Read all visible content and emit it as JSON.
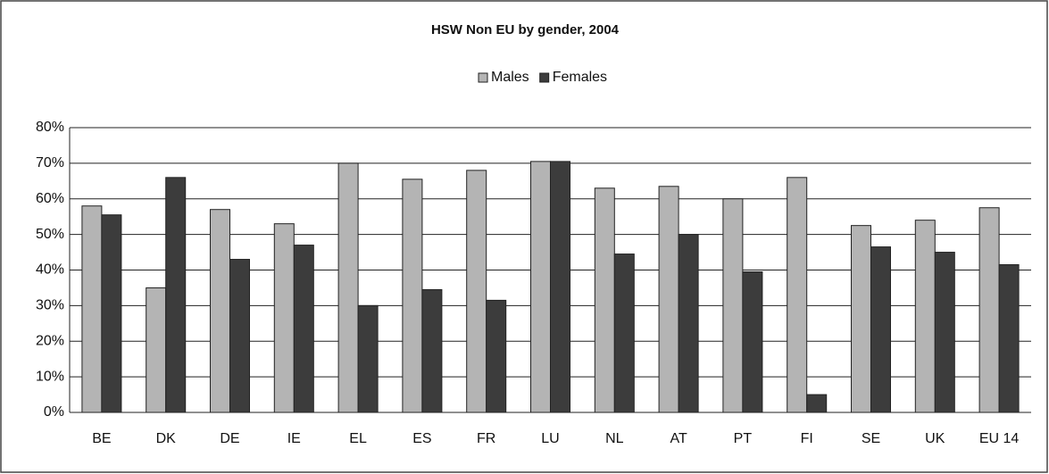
{
  "chart_data": {
    "type": "bar",
    "title": "HSW Non EU by gender, 2004",
    "categories": [
      "BE",
      "DK",
      "DE",
      "IE",
      "EL",
      "ES",
      "FR",
      "LU",
      "NL",
      "AT",
      "PT",
      "FI",
      "SE",
      "UK",
      "EU 14"
    ],
    "series": [
      {
        "name": "Males",
        "color": "#b4b4b4",
        "values": [
          58,
          35,
          57,
          53,
          70,
          65.5,
          68,
          70.5,
          63,
          63.5,
          60,
          66,
          52.5,
          54,
          57.5
        ]
      },
      {
        "name": "Females",
        "color": "#3c3c3c",
        "values": [
          55.5,
          66,
          43,
          47,
          30,
          34.5,
          31.5,
          70.5,
          44.5,
          50,
          39.5,
          5,
          46.5,
          45,
          41.5
        ]
      }
    ],
    "ylim": [
      0,
      80
    ],
    "yticks": [
      {
        "value": 0,
        "label": "0%"
      },
      {
        "value": 10,
        "label": "10%"
      },
      {
        "value": 20,
        "label": "20%"
      },
      {
        "value": 30,
        "label": "30%"
      },
      {
        "value": 40,
        "label": "40%"
      },
      {
        "value": 50,
        "label": "50%"
      },
      {
        "value": 60,
        "label": "60%"
      },
      {
        "value": 70,
        "label": "70%"
      },
      {
        "value": 80,
        "label": "80%"
      }
    ],
    "grid": true,
    "legend": "top"
  }
}
